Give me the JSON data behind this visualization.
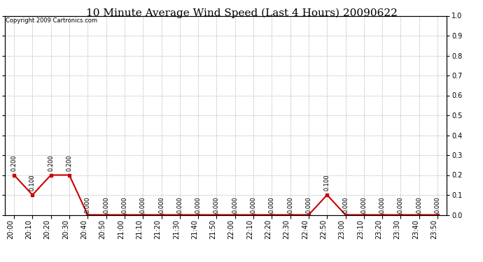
{
  "title": "10 Minute Average Wind Speed (Last 4 Hours) 20090622",
  "copyright": "Copyright 2009 Cartronics.com",
  "x_labels": [
    "20:00",
    "20:10",
    "20:20",
    "20:30",
    "20:40",
    "20:50",
    "21:00",
    "21:10",
    "21:20",
    "21:30",
    "21:40",
    "21:50",
    "22:00",
    "22:10",
    "22:20",
    "22:30",
    "22:40",
    "22:50",
    "23:00",
    "23:10",
    "23:20",
    "23:30",
    "23:40",
    "23:50"
  ],
  "y_values": [
    0.2,
    0.1,
    0.2,
    0.2,
    0.0,
    0.0,
    0.0,
    0.0,
    0.0,
    0.0,
    0.0,
    0.0,
    0.0,
    0.0,
    0.0,
    0.0,
    0.0,
    0.1,
    0.0,
    0.0,
    0.0,
    0.0,
    0.0,
    0.0
  ],
  "line_color": "#cc0000",
  "marker": "s",
  "marker_size": 2.5,
  "ylim": [
    0.0,
    1.0
  ],
  "yticks": [
    0.0,
    0.1,
    0.2,
    0.3,
    0.4,
    0.5,
    0.6,
    0.7,
    0.8,
    0.9,
    1.0
  ],
  "grid_color": "#bbbbbb",
  "grid_style": "--",
  "bg_color": "#ffffff",
  "plot_bg_color": "#ffffff",
  "title_fontsize": 11,
  "copyright_fontsize": 6,
  "tick_fontsize": 7,
  "label_rotation": 90,
  "annotation_fontsize": 6
}
